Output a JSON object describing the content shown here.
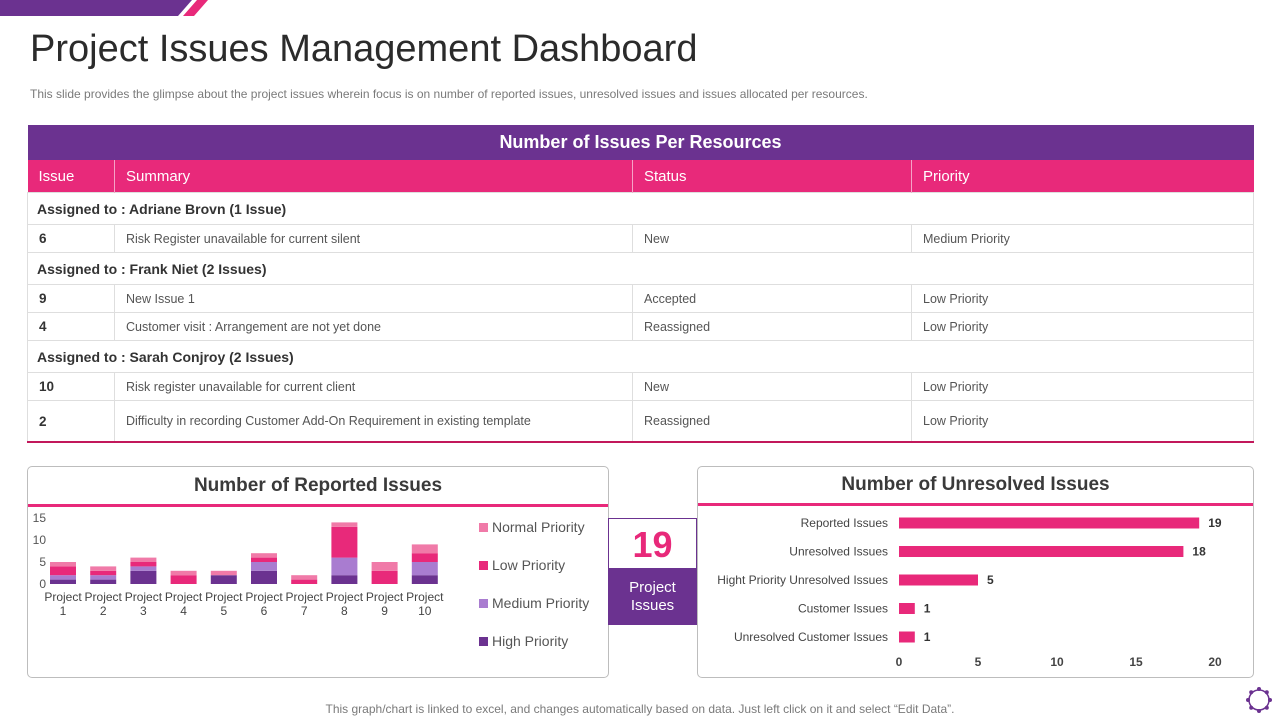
{
  "title": "Project Issues Management Dashboard",
  "subtitle": "This slide provides  the glimpse about the project issues wherein focus is on number of reported  issues, unresolved  issues and issues allocated per resources.",
  "colors": {
    "purple": "#6b3290",
    "pink": "#e8297a",
    "normal_priority": "#f07aa8",
    "low_priority": "#e8297a",
    "medium_priority": "#a97cd0",
    "high_priority": "#6b3290"
  },
  "table": {
    "title": "Number of Issues Per Resources",
    "headers": [
      "Issue",
      "Summary",
      "Status",
      "Priority"
    ],
    "groups": [
      {
        "label": "Assigned to : Adriane Brovn (1 Issue)",
        "rows": [
          {
            "issue": "6",
            "summary": "Risk Register unavailable  for current silent",
            "status": "New",
            "priority": "Medium Priority"
          }
        ]
      },
      {
        "label": "Assigned to : Frank Niet (2 Issues)",
        "rows": [
          {
            "issue": "9",
            "summary": "New Issue 1",
            "status": "Accepted",
            "priority": "Low Priority"
          },
          {
            "issue": "4",
            "summary": "Customer visit  : Arrangement  are not yet done",
            "status": "Reassigned",
            "priority": "Low Priority"
          }
        ]
      },
      {
        "label": "Assigned to : Sarah Conjroy (2 Issues)",
        "rows": [
          {
            "issue": "10",
            "summary": "Risk register unavailable  for current client",
            "status": "New",
            "priority": "Low Priority"
          },
          {
            "issue": "2",
            "summary": "Difficulty  in recording  Customer Add-On  Requirement  in existing template",
            "status": "Reassigned",
            "priority": "Low Priority"
          }
        ]
      }
    ]
  },
  "reported_panel": {
    "title": "Number of Reported Issues"
  },
  "unresolved_panel": {
    "title": "Number of Unresolved Issues"
  },
  "kpi": {
    "value": "19",
    "label_line1": "Project",
    "label_line2": "Issues"
  },
  "footer": "This graph/chart is linked to excel,  and changes automatically based on data. Just left click on it and select “Edit Data”.",
  "chart_data": [
    {
      "type": "bar",
      "stacked": true,
      "title": "Number of Reported Issues",
      "categories": [
        "Project 1",
        "Project 2",
        "Project 3",
        "Project 4",
        "Project 5",
        "Project 6",
        "Project 7",
        "Project 8",
        "Project 9",
        "Project 10"
      ],
      "series": [
        {
          "name": "High Priority",
          "values": [
            1,
            1,
            3,
            0,
            2,
            3,
            0,
            2,
            0,
            2
          ]
        },
        {
          "name": "Medium Priority",
          "values": [
            1,
            1,
            1,
            0,
            0,
            2,
            0,
            4,
            0,
            3
          ]
        },
        {
          "name": "Low Priority",
          "values": [
            2,
            1,
            1,
            2,
            0,
            1,
            1,
            7,
            3,
            2
          ]
        },
        {
          "name": "Normal Priority",
          "values": [
            1,
            1,
            1,
            1,
            1,
            1,
            1,
            1,
            2,
            2
          ]
        }
      ],
      "yticks": [
        "0",
        "5",
        "10",
        "15"
      ],
      "ylim": [
        0,
        15
      ],
      "legend": [
        "Normal Priority",
        "Low Priority",
        "Medium Priority",
        "High Priority"
      ],
      "legend_position": "right",
      "grid": false
    },
    {
      "type": "bar",
      "orientation": "horizontal",
      "title": "Number of Unresolved Issues",
      "categories": [
        "Reported Issues",
        "Unresolved Issues",
        "Hight Priority Unresolved Issues",
        "Customer Issues",
        "Unresolved Customer Issues"
      ],
      "values": [
        19,
        18,
        5,
        1,
        1
      ],
      "xticks": [
        "0",
        "5",
        "10",
        "15",
        "20"
      ],
      "xlim": [
        0,
        20
      ],
      "grid": false
    }
  ]
}
